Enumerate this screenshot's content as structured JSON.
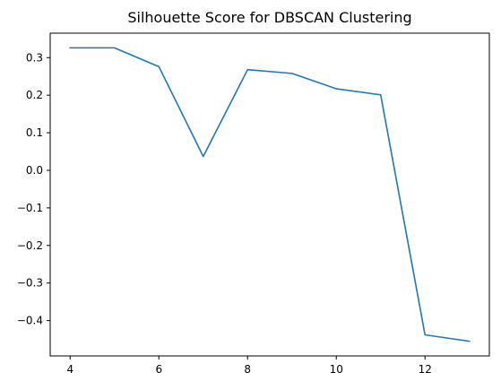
{
  "chart_data": {
    "type": "line",
    "title": "Silhouette Score for DBSCAN Clustering",
    "xlabel": "",
    "ylabel": "",
    "x": [
      4,
      5,
      6,
      7,
      8,
      9,
      10,
      11,
      12,
      13
    ],
    "series": [
      {
        "values": [
          0.326,
          0.326,
          0.276,
          0.037,
          0.268,
          0.258,
          0.217,
          0.201,
          -0.438,
          -0.455
        ],
        "color": "#1f77b4"
      }
    ],
    "xlim": [
      3.55,
      13.45
    ],
    "ylim": [
      -0.4941,
      0.3651
    ],
    "xticks": [
      4,
      6,
      8,
      10,
      12
    ],
    "yticks": [
      -0.4,
      -0.3,
      -0.2,
      -0.1,
      0.0,
      0.1,
      0.2,
      0.3
    ],
    "ytick_labels": [
      "−0.4",
      "−0.3",
      "−0.2",
      "−0.1",
      "0.0",
      "0.1",
      "0.2",
      "0.3"
    ],
    "grid": false,
    "legend": "none"
  }
}
